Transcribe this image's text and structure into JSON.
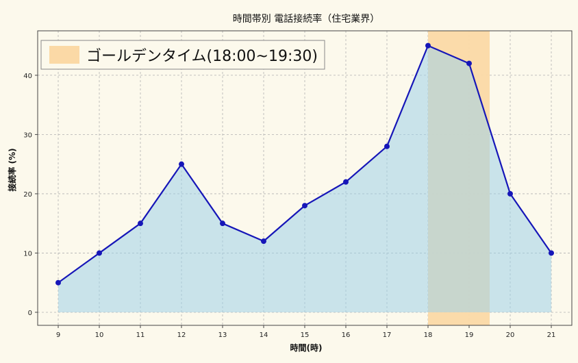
{
  "chart_data": {
    "type": "area",
    "title": "時間帯別 電話接続率（住宅業界）",
    "xlabel": "時間(時)",
    "ylabel": "接続率 (%)",
    "x": [
      9,
      10,
      11,
      12,
      13,
      14,
      15,
      16,
      17,
      18,
      19,
      20,
      21
    ],
    "series": [
      {
        "values": [
          5,
          10,
          15,
          25,
          15,
          12,
          18,
          22,
          28,
          45,
          42,
          20,
          10
        ]
      }
    ],
    "xlim": [
      8.5,
      21.5
    ],
    "ylim": [
      -2.2,
      47.5
    ],
    "xticks": [
      9,
      10,
      11,
      12,
      13,
      14,
      15,
      16,
      17,
      18,
      19,
      20,
      21
    ],
    "yticks": [
      0,
      10,
      20,
      30,
      40
    ],
    "grid": true,
    "highlight": {
      "label": "ゴールデンタイム(18:00~19:30)",
      "x_start": 18,
      "x_end": 19.5,
      "color": "#fbd9a6"
    },
    "legend_position": "top-left",
    "colors": {
      "line": "#1616b8",
      "fill": "#bfe3f0",
      "highlight": "#fbd9a6",
      "background": "#fcf9ec",
      "grid": "#b0b0b0"
    }
  }
}
